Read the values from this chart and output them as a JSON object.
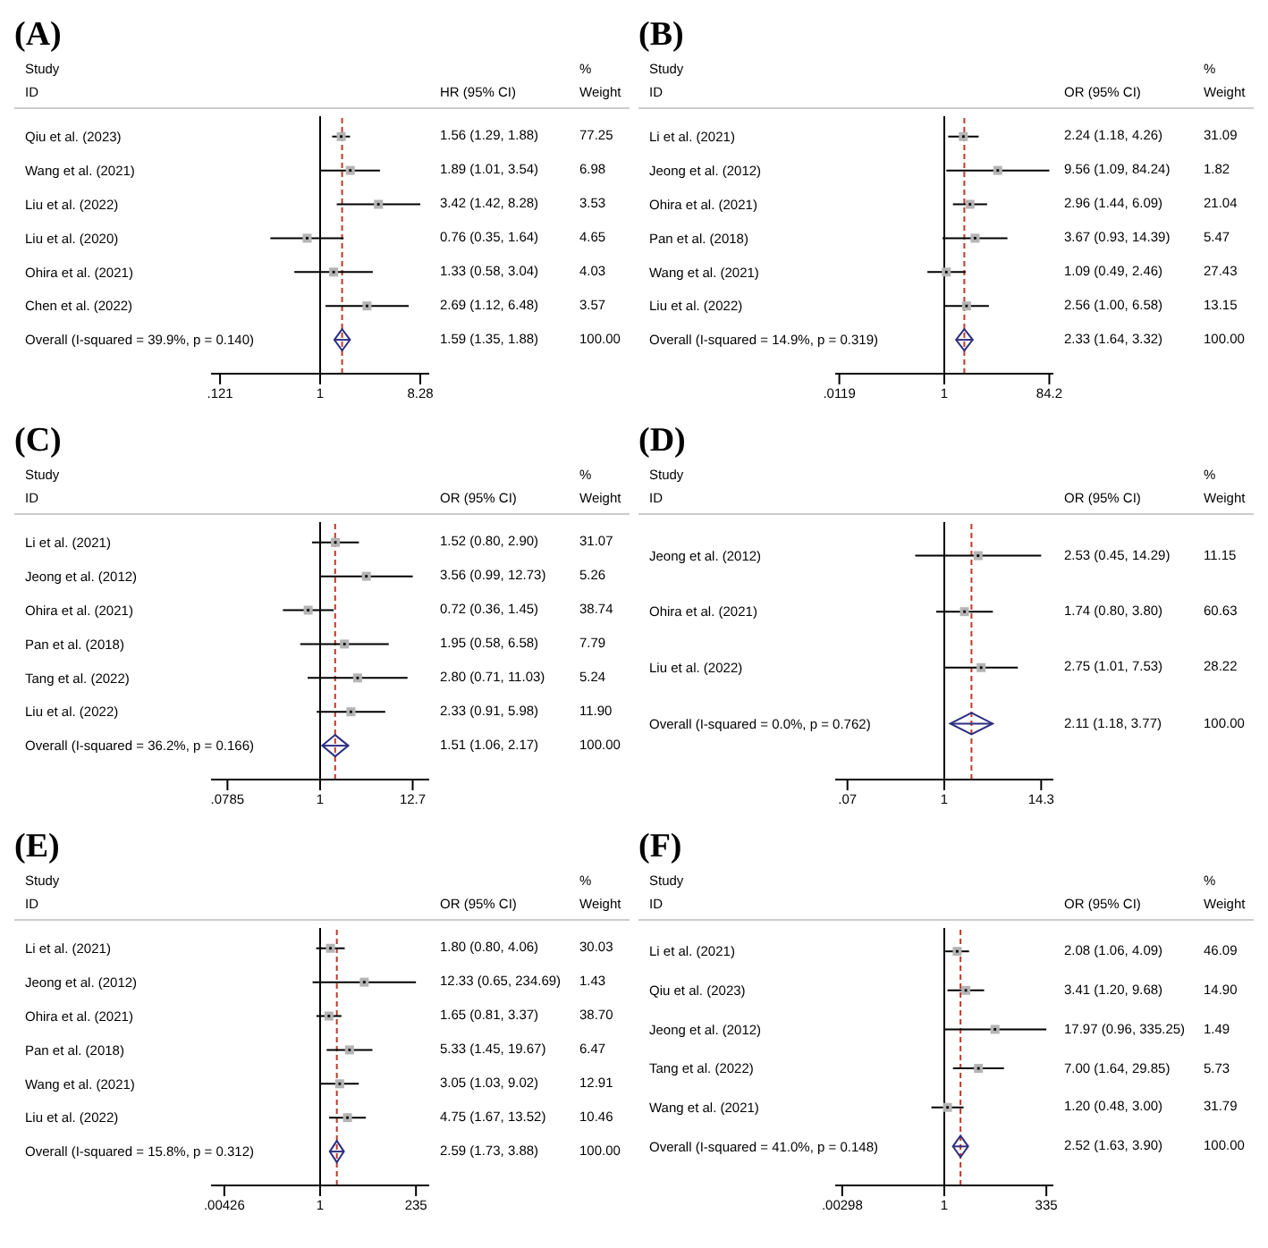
{
  "chart_data": [
    {
      "type": "scatter",
      "title": "(A)",
      "orientation": "horizontal",
      "log": "x",
      "xlim": [
        0.1,
        10
      ],
      "xticks": [
        {
          "value": 0.121,
          "label": ".121"
        },
        1,
        8.28
      ],
      "categories": [
        "Qiu et al. (2023)",
        "Wang et al. (2021)",
        "Liu et al. (2022)",
        "Liu et al. (2020)",
        "Ohira et al. (2021)",
        "Chen et al. (2022)",
        "Overall  (I-squared = 39.9%, p = 0.140)"
      ],
      "annotations": [
        "Study",
        "ID",
        "HR (95% CI)",
        "%",
        "Weight",
        "1.56 (1.29, 1.88)",
        "77.25",
        "1.89 (1.01, 3.54)",
        "6.98",
        "3.42 (1.42, 8.28)",
        "3.53",
        "0.76 (0.35, 1.64)",
        "4.65",
        "1.33 (0.58, 3.04)",
        "4.03",
        "2.69 (1.12, 6.48)",
        "3.57",
        "1.59 (1.35, 1.88)",
        "100.00"
      ],
      "series": [
        {
          "marker": "square",
          "color": "#b4b4b4",
          "values": [
            1.56,
            1.89,
            3.42,
            0.76,
            1.33,
            2.69,
            null
          ],
          "errors": [
            [
              1.29,
              1.88
            ],
            [
              1.01,
              3.54
            ],
            [
              1.42,
              8.28
            ],
            [
              0.35,
              1.64
            ],
            [
              0.58,
              3.04
            ],
            [
              1.12,
              6.48
            ],
            null
          ]
        },
        {
          "marker": "diamond",
          "color": "#2e2e80",
          "values": [
            null,
            null,
            null,
            null,
            null,
            null,
            1.59
          ],
          "errors": [
            null,
            null,
            null,
            null,
            null,
            null,
            [
              1.35,
              1.88
            ]
          ]
        }
      ],
      "ref_lines": [
        {
          "axis": "x",
          "value": 1,
          "color": "#000000"
        },
        {
          "axis": "x",
          "value": 1.59,
          "color": "#c0392b",
          "line_style": "dashed"
        }
      ]
    },
    {
      "type": "scatter",
      "title": "(B)",
      "orientation": "horizontal",
      "log": "x",
      "xlim": [
        0.01,
        100
      ],
      "xticks": [
        {
          "value": 0.0119,
          "label": ".0119"
        },
        1,
        84.2
      ],
      "categories": [
        "Li et al. (2021)",
        "Jeong et al. (2012)",
        "Ohira et al. (2021)",
        "Pan et al. (2018)",
        "Wang et al. (2021)",
        "Liu et al. (2022)",
        "Overall  (I-squared = 14.9%, p = 0.319)"
      ],
      "annotations": [
        "Study",
        "ID",
        "OR (95% CI)",
        "%",
        "Weight",
        "2.24 (1.18, 4.26)",
        "31.09",
        "9.56 (1.09, 84.24)",
        "1.82",
        "2.96 (1.44, 6.09)",
        "21.04",
        "3.67 (0.93, 14.39)",
        "5.47",
        "1.09 (0.49, 2.46)",
        "27.43",
        "2.56 (1.00, 6.58)",
        "13.15",
        "2.33 (1.64, 3.32)",
        "100.00"
      ],
      "series": [
        {
          "marker": "square",
          "color": "#b4b4b4",
          "values": [
            2.24,
            9.56,
            2.96,
            3.67,
            1.09,
            2.56,
            null
          ],
          "errors": [
            [
              1.18,
              4.26
            ],
            [
              1.09,
              84.24
            ],
            [
              1.44,
              6.09
            ],
            [
              0.93,
              14.39
            ],
            [
              0.49,
              2.46
            ],
            [
              1.0,
              6.58
            ],
            null
          ]
        },
        {
          "marker": "diamond",
          "color": "#2e2e80",
          "values": [
            null,
            null,
            null,
            null,
            null,
            null,
            2.33
          ],
          "errors": [
            null,
            null,
            null,
            null,
            null,
            null,
            [
              1.64,
              3.32
            ]
          ]
        }
      ],
      "ref_lines": [
        {
          "axis": "x",
          "value": 1,
          "color": "#000000"
        },
        {
          "axis": "x",
          "value": 2.33,
          "color": "#c0392b",
          "line_style": "dashed"
        }
      ]
    },
    {
      "type": "scatter",
      "title": "(C)",
      "orientation": "horizontal",
      "log": "x",
      "xlim": [
        0.05,
        20
      ],
      "xticks": [
        {
          "value": 0.0785,
          "label": ".0785"
        },
        1,
        12.7
      ],
      "categories": [
        "Li et al. (2021)",
        "Jeong et al. (2012)",
        "Ohira et al. (2021)",
        "Pan et al. (2018)",
        "Tang et al. (2022)",
        "Liu et al. (2022)",
        "Overall  (I-squared = 36.2%, p = 0.166)"
      ],
      "annotations": [
        "Study",
        "ID",
        "OR (95% CI)",
        "%",
        "Weight",
        "1.52 (0.80, 2.90)",
        "31.07",
        "3.56 (0.99, 12.73)",
        "5.26",
        "0.72 (0.36, 1.45)",
        "38.74",
        "1.95 (0.58, 6.58)",
        "7.79",
        "2.80 (0.71, 11.03)",
        "5.24",
        "2.33 (0.91, 5.98)",
        "11.90",
        "1.51 (1.06, 2.17)",
        "100.00"
      ],
      "series": [
        {
          "marker": "square",
          "color": "#b4b4b4",
          "values": [
            1.52,
            3.56,
            0.72,
            1.95,
            2.8,
            2.33,
            null
          ],
          "errors": [
            [
              0.8,
              2.9
            ],
            [
              0.99,
              12.73
            ],
            [
              0.36,
              1.45
            ],
            [
              0.58,
              6.58
            ],
            [
              0.71,
              11.03
            ],
            [
              0.91,
              5.98
            ],
            null
          ]
        },
        {
          "marker": "diamond",
          "color": "#2e2e80",
          "values": [
            null,
            null,
            null,
            null,
            null,
            null,
            1.51
          ],
          "errors": [
            null,
            null,
            null,
            null,
            null,
            null,
            [
              1.06,
              2.17
            ]
          ]
        }
      ],
      "ref_lines": [
        {
          "axis": "x",
          "value": 1,
          "color": "#000000"
        },
        {
          "axis": "x",
          "value": 1.51,
          "color": "#c0392b",
          "line_style": "dashed"
        }
      ]
    },
    {
      "type": "scatter",
      "title": "(D)",
      "orientation": "horizontal",
      "log": "x",
      "xlim": [
        0.05,
        20
      ],
      "xticks": [
        {
          "value": 0.07,
          "label": ".07"
        },
        1,
        14.3
      ],
      "categories": [
        "Jeong et al. (2012)",
        "Ohira et al. (2021)",
        "Liu et al. (2022)",
        "Overall  (I-squared = 0.0%, p = 0.762)"
      ],
      "annotations": [
        "Study",
        "ID",
        "OR (95% CI)",
        "%",
        "Weight",
        "2.53 (0.45, 14.29)",
        "11.15",
        "1.74 (0.80, 3.80)",
        "60.63",
        "2.75 (1.01, 7.53)",
        "28.22",
        "2.11 (1.18, 3.77)",
        "100.00"
      ],
      "series": [
        {
          "marker": "square",
          "color": "#b4b4b4",
          "values": [
            2.53,
            1.74,
            2.75,
            null
          ],
          "errors": [
            [
              0.45,
              14.29
            ],
            [
              0.8,
              3.8
            ],
            [
              1.01,
              7.53
            ],
            null
          ]
        },
        {
          "marker": "diamond",
          "color": "#2e2e80",
          "values": [
            null,
            null,
            null,
            2.11
          ],
          "errors": [
            null,
            null,
            null,
            [
              1.18,
              3.77
            ]
          ]
        }
      ],
      "ref_lines": [
        {
          "axis": "x",
          "value": 1,
          "color": "#000000"
        },
        {
          "axis": "x",
          "value": 2.11,
          "color": "#c0392b",
          "line_style": "dashed"
        }
      ]
    },
    {
      "type": "scatter",
      "title": "(E)",
      "orientation": "horizontal",
      "log": "x",
      "xlim": [
        0.002,
        500
      ],
      "xticks": [
        {
          "value": 0.00426,
          "label": ".00426"
        },
        1,
        235
      ],
      "categories": [
        "Li et al. (2021)",
        "Jeong et al. (2012)",
        "Ohira et al. (2021)",
        "Pan et al. (2018)",
        "Wang et al. (2021)",
        "Liu et al. (2022)",
        "Overall  (I-squared = 15.8%, p = 0.312)"
      ],
      "annotations": [
        "Study",
        "ID",
        "OR (95% CI)",
        "%",
        "Weight",
        "1.80 (0.80, 4.06)",
        "30.03",
        "12.33 (0.65, 234.69)",
        "1.43",
        "1.65 (0.81, 3.37)",
        "38.70",
        "5.33 (1.45, 19.67)",
        "6.47",
        "3.05 (1.03, 9.02)",
        "12.91",
        "4.75 (1.67, 13.52)",
        "10.46",
        "2.59 (1.73, 3.88)",
        "100.00"
      ],
      "series": [
        {
          "marker": "square",
          "color": "#b4b4b4",
          "values": [
            1.8,
            12.33,
            1.65,
            5.33,
            3.05,
            4.75,
            null
          ],
          "errors": [
            [
              0.8,
              4.06
            ],
            [
              0.65,
              234.69
            ],
            [
              0.81,
              3.37
            ],
            [
              1.45,
              19.67
            ],
            [
              1.03,
              9.02
            ],
            [
              1.67,
              13.52
            ],
            null
          ]
        },
        {
          "marker": "diamond",
          "color": "#2e2e80",
          "values": [
            null,
            null,
            null,
            null,
            null,
            null,
            2.59
          ],
          "errors": [
            null,
            null,
            null,
            null,
            null,
            null,
            [
              1.73,
              3.88
            ]
          ]
        }
      ],
      "ref_lines": [
        {
          "axis": "x",
          "value": 1,
          "color": "#000000"
        },
        {
          "axis": "x",
          "value": 2.59,
          "color": "#c0392b",
          "line_style": "dashed"
        }
      ]
    },
    {
      "type": "scatter",
      "title": "(F)",
      "orientation": "horizontal",
      "log": "x",
      "xlim": [
        0.002,
        500
      ],
      "xticks": [
        {
          "value": 0.00298,
          "label": ".00298"
        },
        1,
        335
      ],
      "categories": [
        "Li et al. (2021)",
        "Qiu et al. (2023)",
        "Jeong et al. (2012)",
        "Tang et al. (2022)",
        "Wang et al. (2021)",
        "Overall  (I-squared = 41.0%, p = 0.148)"
      ],
      "annotations": [
        "Study",
        "ID",
        "OR (95% CI)",
        "%",
        "Weight",
        "2.08 (1.06, 4.09)",
        "46.09",
        "3.41 (1.20, 9.68)",
        "14.90",
        "17.97 (0.96, 335.25)",
        "1.49",
        "7.00 (1.64, 29.85)",
        "5.73",
        "1.20 (0.48, 3.00)",
        "31.79",
        "2.52 (1.63, 3.90)",
        "100.00"
      ],
      "series": [
        {
          "marker": "square",
          "color": "#b4b4b4",
          "values": [
            2.08,
            3.41,
            17.97,
            7.0,
            1.2,
            null
          ],
          "errors": [
            [
              1.06,
              4.09
            ],
            [
              1.2,
              9.68
            ],
            [
              0.96,
              335.25
            ],
            [
              1.64,
              29.85
            ],
            [
              0.48,
              3.0
            ],
            null
          ]
        },
        {
          "marker": "diamond",
          "color": "#2e2e80",
          "values": [
            null,
            null,
            null,
            null,
            null,
            2.52
          ],
          "errors": [
            null,
            null,
            null,
            null,
            null,
            [
              1.63,
              3.9
            ]
          ]
        }
      ],
      "ref_lines": [
        {
          "axis": "x",
          "value": 1,
          "color": "#000000"
        },
        {
          "axis": "x",
          "value": 2.52,
          "color": "#c0392b",
          "line_style": "dashed"
        }
      ]
    }
  ]
}
